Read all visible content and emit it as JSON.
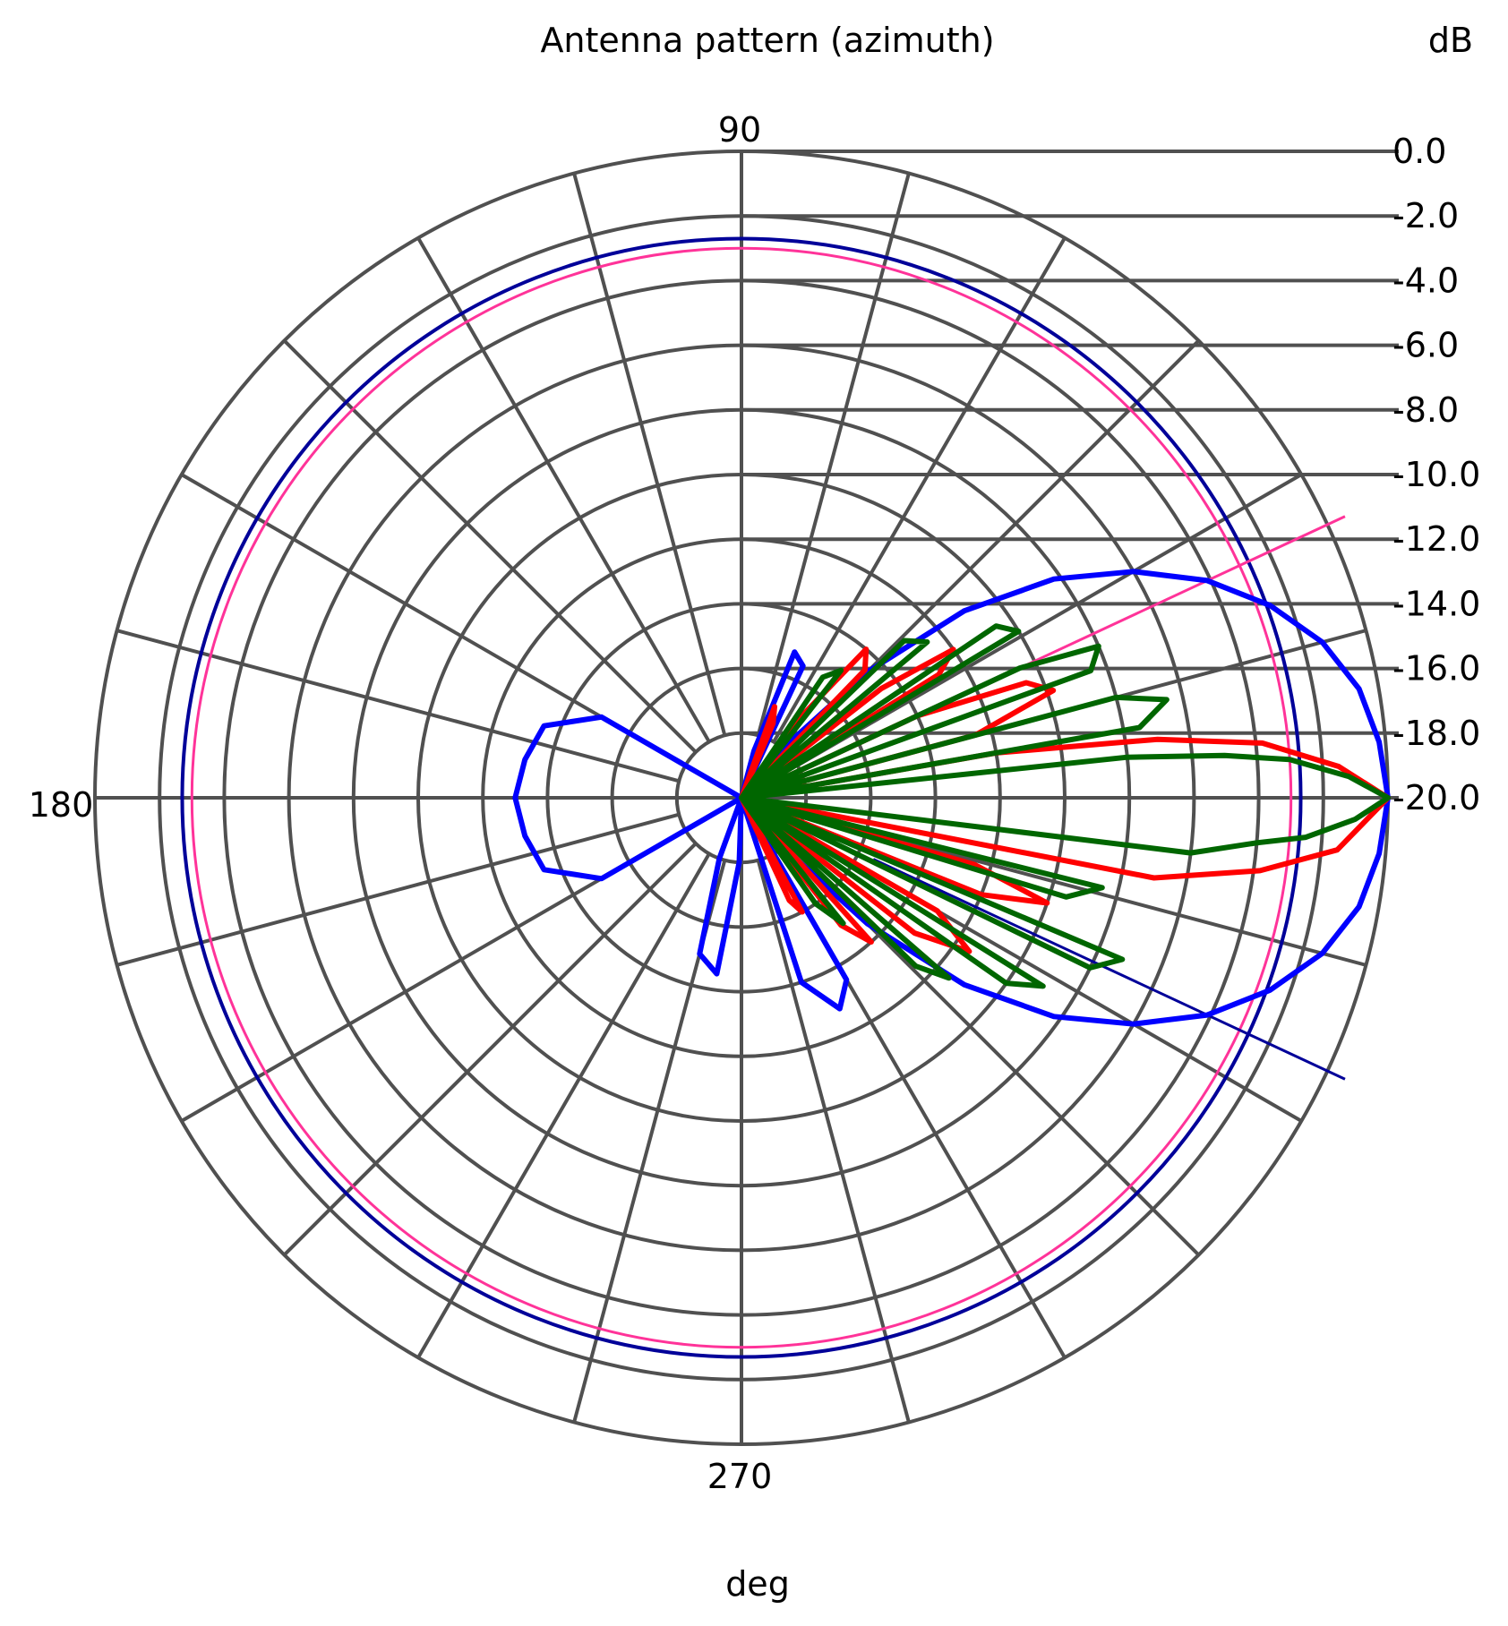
{
  "chart_data": {
    "type": "polar",
    "title": "Antenna pattern (azimuth)",
    "radial_unit": "dB",
    "angular_unit": "deg",
    "angular_tick_labels": [
      "90",
      "180",
      "270"
    ],
    "radial_tick_labels": [
      "0.0",
      "-2.0",
      "-4.0",
      "-6.0",
      "-8.0",
      "-10.0",
      "-12.0",
      "-14.0",
      "-16.0",
      "-18.0",
      "-20.0"
    ],
    "radial_range": [
      -20,
      0
    ],
    "angular_grid_step_deg": 15,
    "grid": true,
    "colors": {
      "grid": "#505050",
      "ref_circle_outer": "#000099",
      "ref_circle_inner": "#ff3399",
      "series_blue": "#0000ff",
      "series_red": "#ff0000",
      "series_green": "#006600",
      "ref_line_upper": "#ff3399",
      "ref_line_lower": "#000099"
    },
    "reference_circles_db": [
      -2.7,
      -3.0
    ],
    "reference_lines_deg": [
      25,
      -25
    ],
    "series": [
      {
        "color": "series_blue",
        "points": [
          [
            0,
            0.0
          ],
          [
            5,
            -0.2
          ],
          [
            10,
            -0.6
          ],
          [
            15,
            -1.4
          ],
          [
            20,
            -2.6
          ],
          [
            25,
            -4.1
          ],
          [
            30,
            -6.0
          ],
          [
            35,
            -8.2
          ],
          [
            40,
            -11.0
          ],
          [
            45,
            -14.5
          ],
          [
            50,
            -18.0
          ],
          [
            58,
            -20.0
          ],
          [
            65,
            -15.5
          ],
          [
            70,
            -15.2
          ],
          [
            75,
            -18.5
          ],
          [
            80,
            -20.0
          ],
          [
            120,
            -20.0
          ],
          [
            150,
            -15.0
          ],
          [
            160,
            -13.5
          ],
          [
            170,
            -13.2
          ],
          [
            180,
            -13.0
          ],
          [
            190,
            -13.2
          ],
          [
            200,
            -13.5
          ],
          [
            210,
            -15.0
          ],
          [
            240,
            -20.0
          ],
          [
            250,
            -18.0
          ],
          [
            255,
            -15.0
          ],
          [
            262,
            -14.5
          ],
          [
            268,
            -18.0
          ],
          [
            280,
            -20.0
          ],
          [
            288,
            -14.0
          ],
          [
            295,
            -12.8
          ],
          [
            300,
            -13.5
          ],
          [
            305,
            -20.0
          ],
          [
            310,
            -18.0
          ],
          [
            315,
            -14.5
          ],
          [
            320,
            -11.0
          ],
          [
            325,
            -8.2
          ],
          [
            330,
            -6.0
          ],
          [
            335,
            -4.1
          ],
          [
            340,
            -2.6
          ],
          [
            345,
            -1.4
          ],
          [
            350,
            -0.6
          ],
          [
            355,
            -0.2
          ],
          [
            360,
            0.0
          ]
        ]
      },
      {
        "color": "series_red",
        "points": [
          [
            0,
            0.0
          ],
          [
            3,
            -1.5
          ],
          [
            6,
            -3.8
          ],
          [
            8,
            -7.0
          ],
          [
            10,
            -12.0
          ],
          [
            12,
            -20.0
          ],
          [
            15,
            -12.5
          ],
          [
            19,
            -9.8
          ],
          [
            22,
            -10.5
          ],
          [
            25,
            -14.0
          ],
          [
            28,
            -20.0
          ],
          [
            32,
            -12.8
          ],
          [
            35,
            -12.0
          ],
          [
            38,
            -14.5
          ],
          [
            42,
            -20.0
          ],
          [
            46,
            -14.5
          ],
          [
            50,
            -14.0
          ],
          [
            54,
            -17.0
          ],
          [
            60,
            -20.0
          ],
          [
            67,
            -17.5
          ],
          [
            70,
            -17.0
          ],
          [
            75,
            -20.0
          ],
          [
            290,
            -20.0
          ],
          [
            295,
            -16.5
          ],
          [
            298,
            -16.0
          ],
          [
            303,
            -20.0
          ],
          [
            308,
            -15.0
          ],
          [
            312,
            -14.0
          ],
          [
            317,
            -20.0
          ],
          [
            322,
            -13.2
          ],
          [
            326,
            -11.5
          ],
          [
            330,
            -13.0
          ],
          [
            334,
            -20.0
          ],
          [
            338,
            -12.0
          ],
          [
            341,
            -10.0
          ],
          [
            344,
            -12.5
          ],
          [
            347,
            -20.0
          ],
          [
            349,
            -7.0
          ],
          [
            352,
            -3.8
          ],
          [
            355,
            -1.5
          ],
          [
            360,
            0.0
          ]
        ]
      },
      {
        "color": "series_green",
        "points": [
          [
            0,
            0.0
          ],
          [
            2,
            -1.2
          ],
          [
            4,
            -3.0
          ],
          [
            5,
            -5.0
          ],
          [
            6,
            -8.0
          ],
          [
            7,
            -20.0
          ],
          [
            10,
            -7.5
          ],
          [
            13,
            -6.5
          ],
          [
            15,
            -8.0
          ],
          [
            17,
            -20.0
          ],
          [
            20,
            -8.5
          ],
          [
            23,
            -8.0
          ],
          [
            25,
            -10.5
          ],
          [
            28,
            -20.0
          ],
          [
            31,
            -10.0
          ],
          [
            34,
            -10.5
          ],
          [
            37,
            -20.0
          ],
          [
            40,
            -12.5
          ],
          [
            44,
            -13.0
          ],
          [
            48,
            -20.0
          ],
          [
            52,
            -15.0
          ],
          [
            56,
            -15.5
          ],
          [
            60,
            -20.0
          ],
          [
            300,
            -20.0
          ],
          [
            305,
            -16.0
          ],
          [
            309,
            -15.0
          ],
          [
            313,
            -20.0
          ],
          [
            316,
            -12.5
          ],
          [
            319,
            -11.5
          ],
          [
            322,
            -20.0
          ],
          [
            325,
            -10.0
          ],
          [
            328,
            -9.0
          ],
          [
            331,
            -20.0
          ],
          [
            334,
            -8.0
          ],
          [
            337,
            -7.2
          ],
          [
            340,
            -20.0
          ],
          [
            343,
            -9.5
          ],
          [
            346,
            -8.5
          ],
          [
            349,
            -20.0
          ],
          [
            353,
            -6.0
          ],
          [
            355,
            -4.0
          ],
          [
            356,
            -2.5
          ],
          [
            358,
            -1.0
          ],
          [
            360,
            0.0
          ]
        ]
      }
    ]
  }
}
